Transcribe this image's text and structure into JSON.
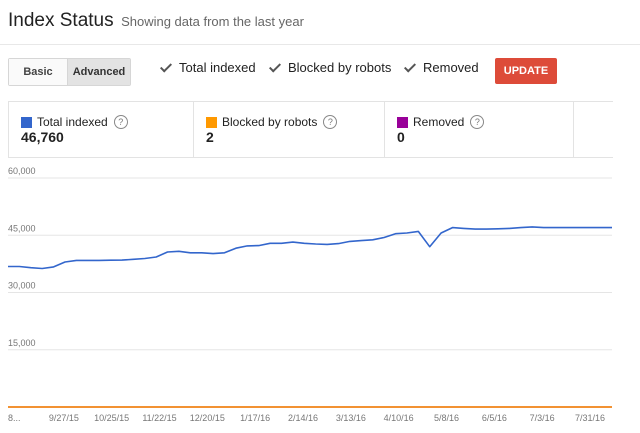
{
  "header": {
    "title": "Index Status",
    "subtitle": "Showing data from the last year"
  },
  "toggles": {
    "basic": "Basic",
    "advanced": "Advanced",
    "selected": "Advanced"
  },
  "checkboxes": [
    {
      "label": "Total indexed",
      "checked": true
    },
    {
      "label": "Blocked by robots",
      "checked": true
    },
    {
      "label": "Removed",
      "checked": true
    }
  ],
  "update_label": "UPDATE",
  "summary": [
    {
      "label": "Total indexed",
      "value": "46,760",
      "color": "#3366cc"
    },
    {
      "label": "Blocked by robots",
      "value": "2",
      "color": "#ff9900"
    },
    {
      "label": "Removed",
      "value": "0",
      "color": "#990099"
    }
  ],
  "chart_data": {
    "type": "line",
    "y_ticks": [
      "60,000",
      "45,000",
      "30,000",
      "15,000"
    ],
    "ylim": [
      0,
      60000
    ],
    "x_labels": [
      "8...",
      "9/27/15",
      "10/25/15",
      "11/22/15",
      "12/20/15",
      "1/17/16",
      "2/14/16",
      "3/13/16",
      "4/10/16",
      "5/8/16",
      "6/5/16",
      "7/3/16",
      "7/31/16"
    ],
    "grid": true,
    "series": [
      {
        "name": "Total indexed",
        "color": "#3366cc",
        "values": [
          36800,
          36800,
          36500,
          36300,
          36700,
          38000,
          38400,
          38400,
          38400,
          38450,
          38500,
          38700,
          38900,
          39300,
          40600,
          40800,
          40400,
          40400,
          40200,
          40400,
          41600,
          42200,
          42300,
          42900,
          42900,
          43200,
          42900,
          42700,
          42600,
          42800,
          43400,
          43600,
          43800,
          44400,
          45400,
          45600,
          46000,
          42000,
          45600,
          47000,
          46800,
          46600,
          46600,
          46700,
          46800,
          47000,
          47200,
          47000,
          47000,
          47000,
          47000,
          47000,
          47000,
          47000
        ]
      },
      {
        "name": "Blocked by robots",
        "color": "#ff9900",
        "values": [
          2,
          2,
          2,
          2,
          2,
          2,
          2,
          2,
          2,
          2,
          2,
          2,
          2,
          2,
          2,
          2,
          2,
          2,
          2,
          2,
          2,
          2,
          2,
          2,
          2,
          2,
          2,
          2,
          2,
          2,
          2,
          2,
          2,
          2,
          2,
          2,
          2,
          2,
          2,
          2,
          2,
          2,
          2,
          2,
          2,
          2,
          2,
          2,
          2,
          2,
          2,
          2,
          2,
          2
        ]
      },
      {
        "name": "Removed",
        "color": "#990099",
        "values": [
          0,
          0,
          0,
          0,
          0,
          0,
          0,
          0,
          0,
          0,
          0,
          0,
          0,
          0,
          0,
          0,
          0,
          0,
          0,
          0,
          0,
          0,
          0,
          0,
          0,
          0,
          0,
          0,
          0,
          0,
          0,
          0,
          0,
          0,
          0,
          0,
          0,
          0,
          0,
          0,
          0,
          0,
          0,
          0,
          0,
          0,
          0,
          0,
          0,
          0,
          0,
          0,
          0,
          0
        ]
      }
    ]
  }
}
